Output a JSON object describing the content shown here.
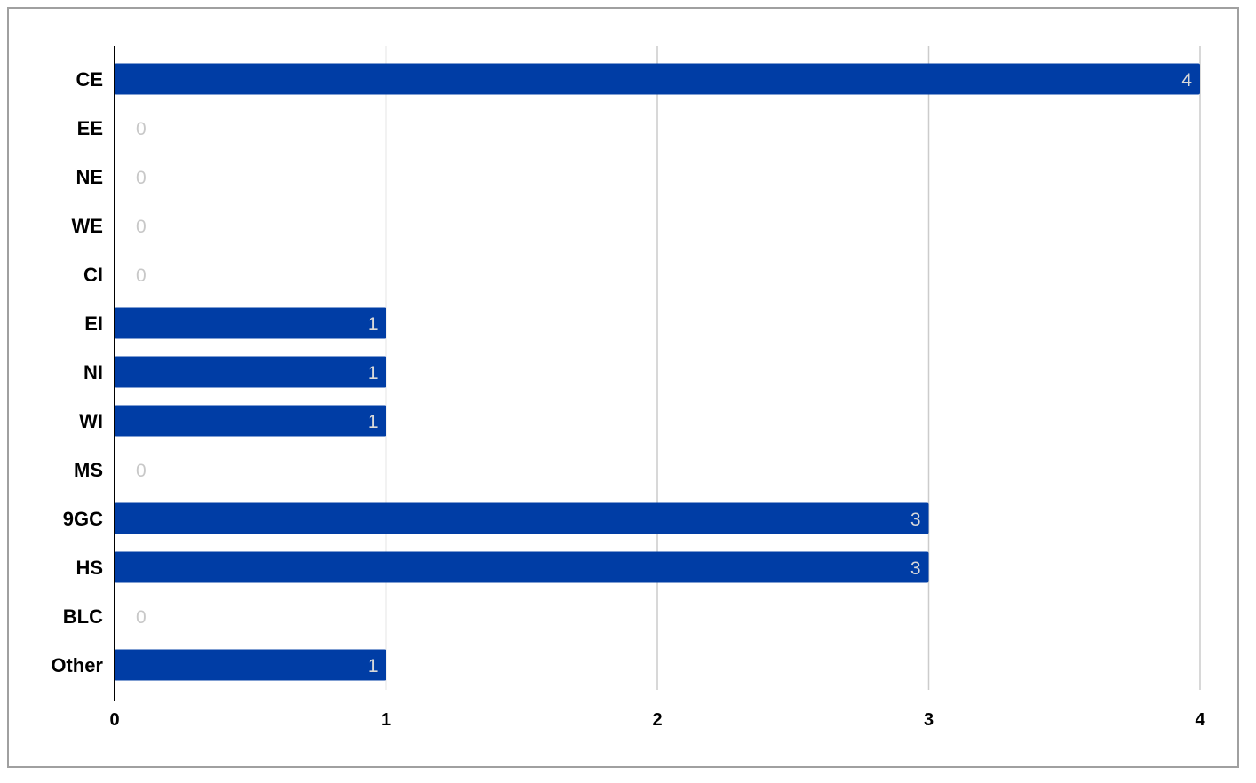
{
  "chart_data": {
    "type": "bar",
    "orientation": "horizontal",
    "categories": [
      "CE",
      "EE",
      "NE",
      "WE",
      "CI",
      "EI",
      "NI",
      "WI",
      "MS",
      "9GC",
      "HS",
      "BLC",
      "Other"
    ],
    "values": [
      4,
      0,
      0,
      0,
      0,
      1,
      1,
      1,
      0,
      3,
      3,
      0,
      1
    ],
    "title": "",
    "xlabel": "",
    "ylabel": "",
    "xlim": [
      0,
      4
    ],
    "x_ticks": [
      "0",
      "1",
      "2",
      "3",
      "4"
    ],
    "grid": true,
    "legend": "none",
    "data_labels": true,
    "colors": {
      "bar": "#003da5",
      "gridline": "#cccccc",
      "axis": "#000000",
      "data_label_inside": "#d9d9d9",
      "data_label_outside": "#c8c8c8",
      "frame": "#a0a0a0"
    }
  }
}
